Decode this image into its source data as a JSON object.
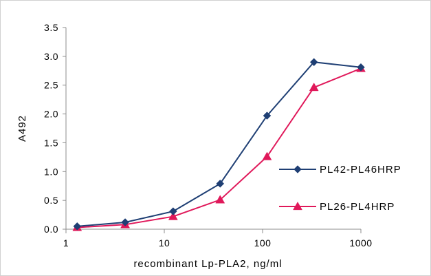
{
  "chart_data": {
    "type": "line",
    "title": "",
    "xlabel": "recombinant Lp-PLA2, ng/ml",
    "ylabel": "A492",
    "xscale": "log",
    "xlim": [
      1,
      1000
    ],
    "ylim": [
      0.0,
      3.5
    ],
    "x_ticks": [
      1,
      10,
      100,
      1000
    ],
    "x_tick_labels": [
      "1",
      "10",
      "100",
      "1000"
    ],
    "y_ticks": [
      0.0,
      0.5,
      1.0,
      1.5,
      2.0,
      2.5,
      3.0,
      3.5
    ],
    "y_tick_labels": [
      "0.0",
      "0.5",
      "1.0",
      "1.5",
      "2.0",
      "2.5",
      "3.0",
      "3.5"
    ],
    "grid": false,
    "legend_position": "right",
    "x": [
      1.3,
      4.0,
      12.3,
      37.0,
      111.0,
      333.0,
      1000.0
    ],
    "series": [
      {
        "name": "PL42-PL46HRP",
        "color": "#1f3f74",
        "marker": "diamond",
        "values": [
          0.05,
          0.12,
          0.31,
          0.79,
          1.97,
          2.9,
          2.81
        ]
      },
      {
        "name": "PL26-PL4HRP",
        "color": "#e0185a",
        "marker": "triangle",
        "values": [
          0.03,
          0.08,
          0.22,
          0.51,
          1.26,
          2.46,
          2.79
        ]
      }
    ]
  }
}
